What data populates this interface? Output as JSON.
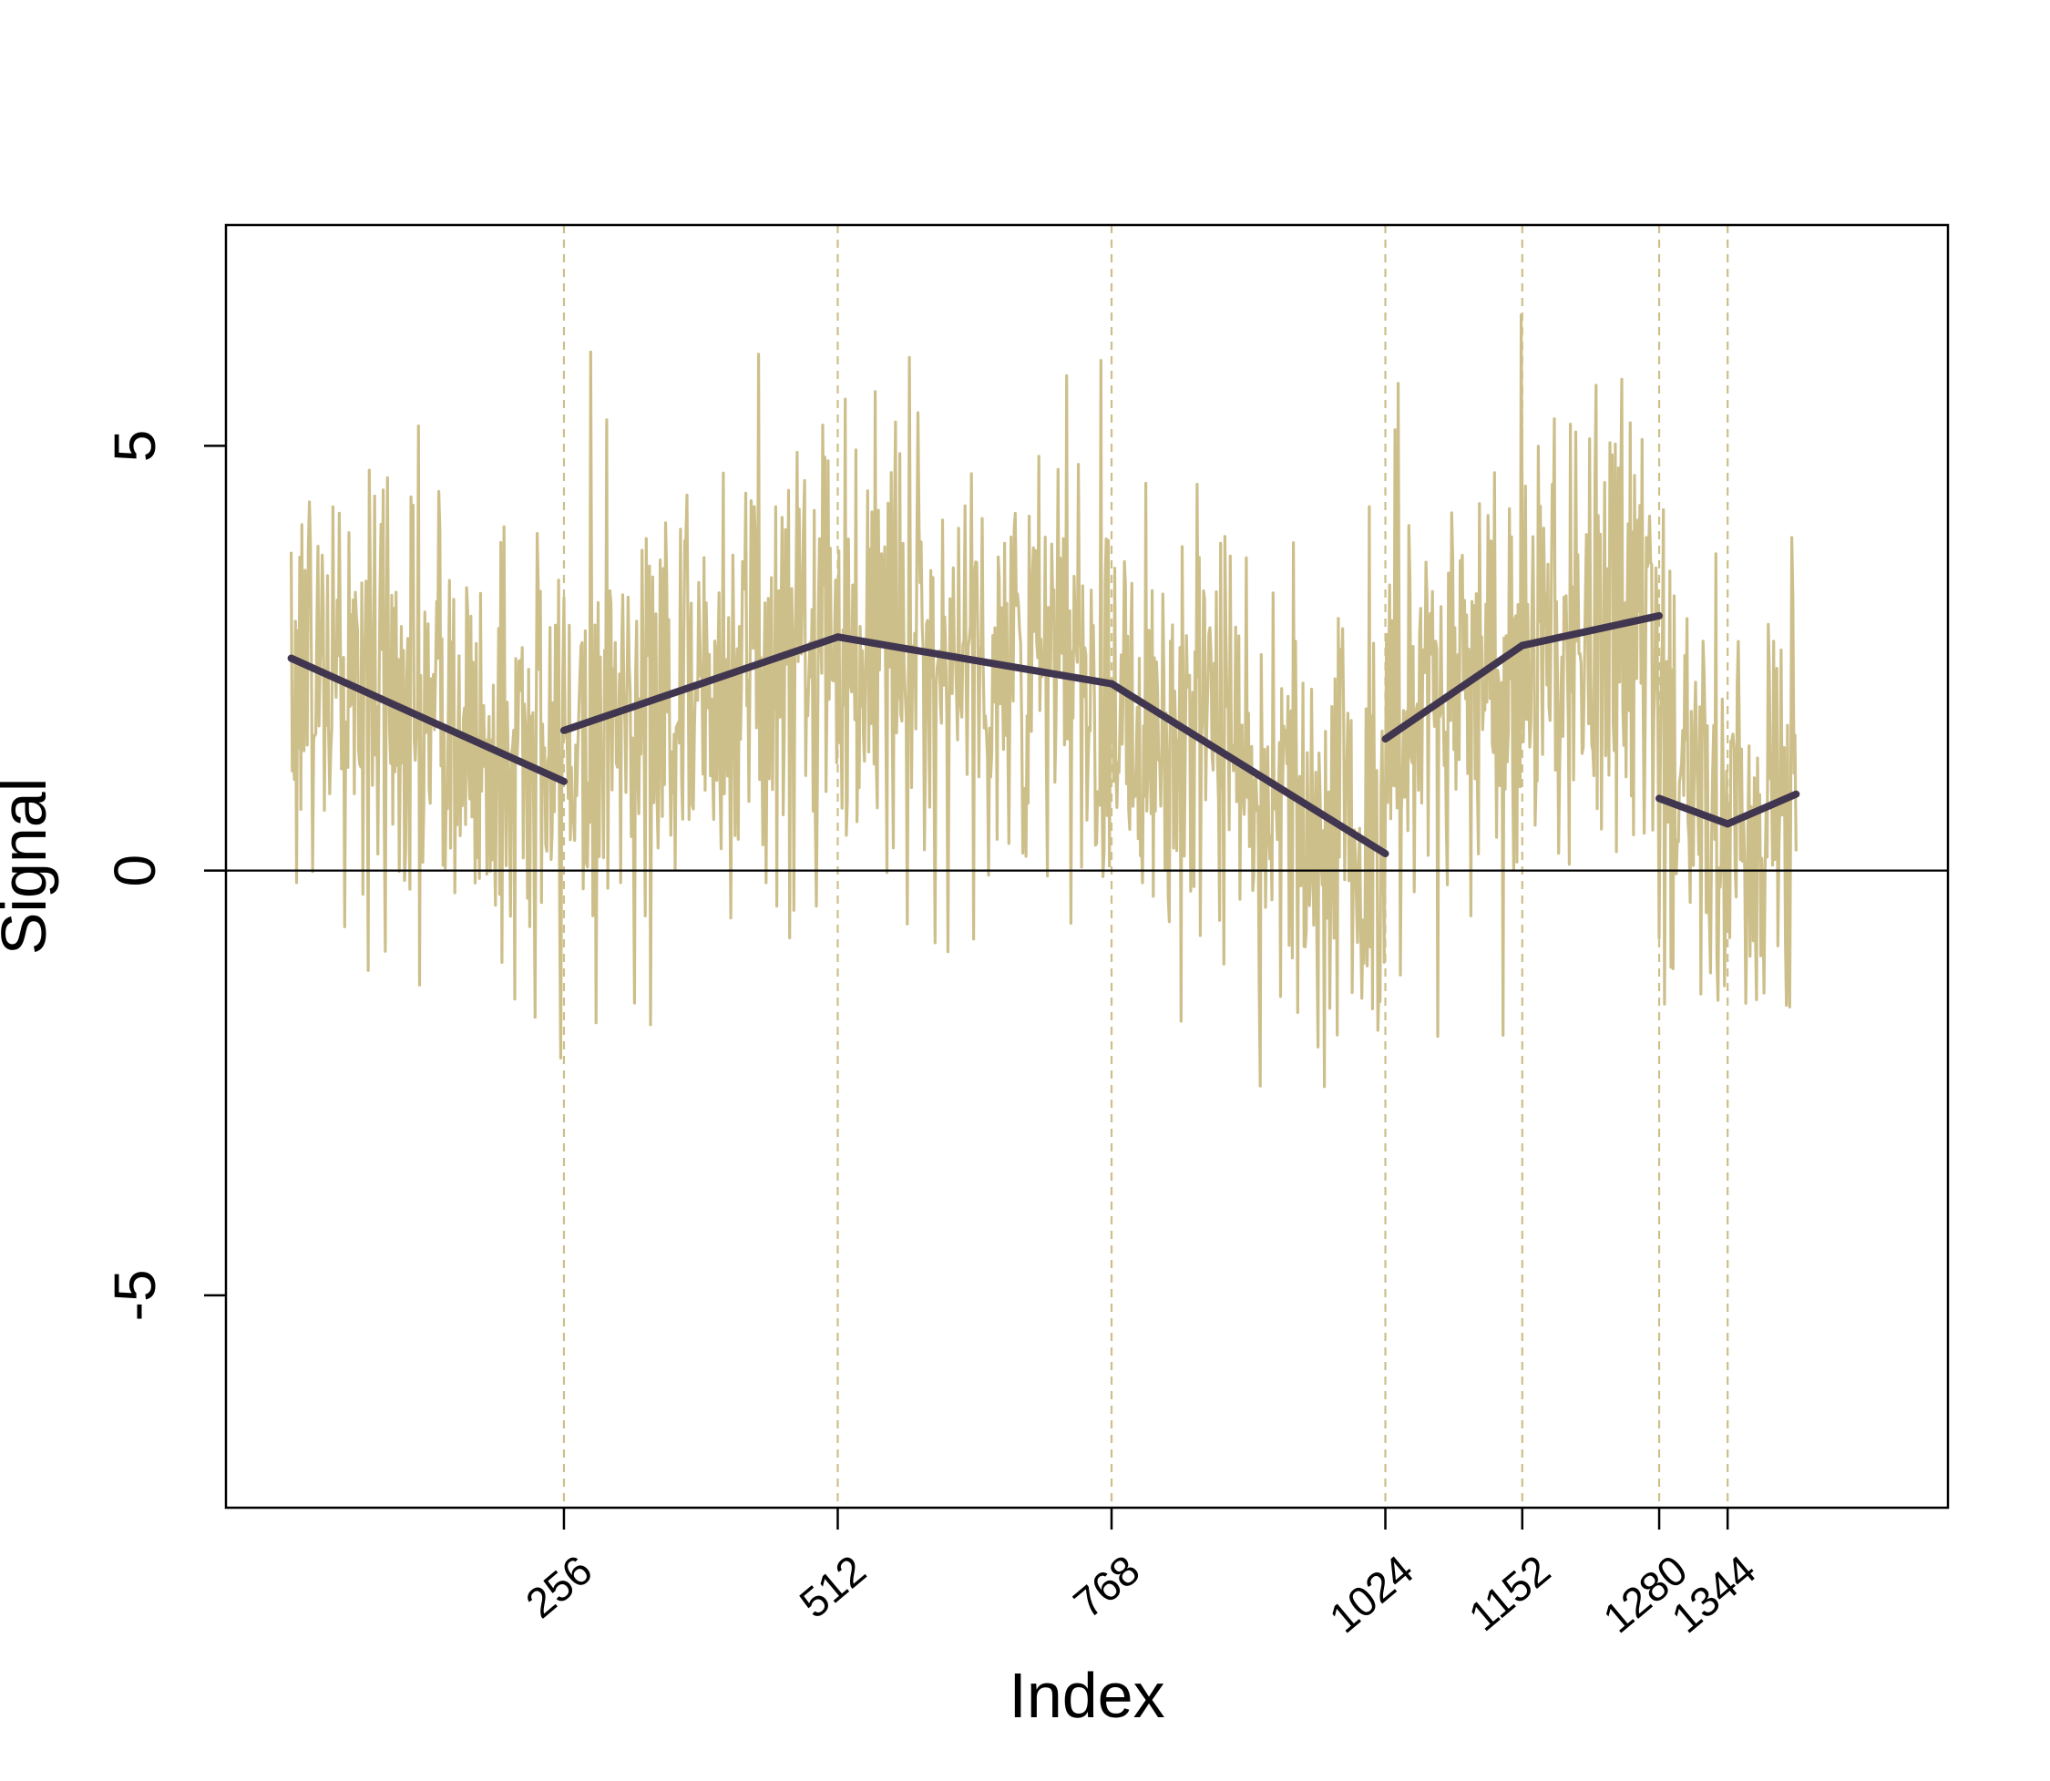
{
  "chart_data": {
    "type": "line",
    "title": "",
    "xlabel": "Index",
    "ylabel": "Signal",
    "xlim": [
      -60,
      1550
    ],
    "ylim": [
      -7.5,
      7.6
    ],
    "y_ticks": [
      -5,
      0,
      5
    ],
    "y_tick_labels": [
      "-5",
      "0",
      "5"
    ],
    "x_ticks": [
      256,
      512,
      768,
      1024,
      1152,
      1280,
      1344
    ],
    "x_tick_labels": [
      "256",
      "512",
      "768",
      "1024",
      "1152",
      "1280",
      "1344"
    ],
    "x_tick_label_rotation": -40,
    "grid": false,
    "legend": "none",
    "reference_lines": {
      "horizontal": [
        0
      ],
      "vertical_dashed": [
        256,
        512,
        768,
        1024,
        1152,
        1280,
        1344
      ]
    },
    "series": [
      {
        "role": "raw",
        "n_points": 1408,
        "x_range": [
          1,
          1408
        ],
        "noise_sd": 1.35,
        "color": "#cdbf8a"
      },
      {
        "role": "piecewise-linear fit",
        "color": "#41364f",
        "segments": [
          {
            "x": [
              1,
              256
            ],
            "y": [
              2.5,
              1.05
            ]
          },
          {
            "x": [
              256,
              512
            ],
            "y": [
              1.65,
              2.75
            ]
          },
          {
            "x": [
              512,
              768
            ],
            "y": [
              2.75,
              2.2
            ]
          },
          {
            "x": [
              768,
              1024
            ],
            "y": [
              2.2,
              0.2
            ]
          },
          {
            "x": [
              1024,
              1152
            ],
            "y": [
              1.55,
              2.65
            ]
          },
          {
            "x": [
              1152,
              1280
            ],
            "y": [
              2.65,
              3.0
            ]
          },
          {
            "x": [
              1280,
              1344
            ],
            "y": [
              0.85,
              0.55
            ]
          },
          {
            "x": [
              1344,
              1408
            ],
            "y": [
              0.55,
              0.9
            ]
          }
        ]
      }
    ]
  },
  "colors": {
    "raw_signal": "#cdbf8a",
    "fit_line": "#41364f",
    "breakpoint_line": "#cdbf8a",
    "axis": "#000000",
    "background": "#ffffff"
  }
}
